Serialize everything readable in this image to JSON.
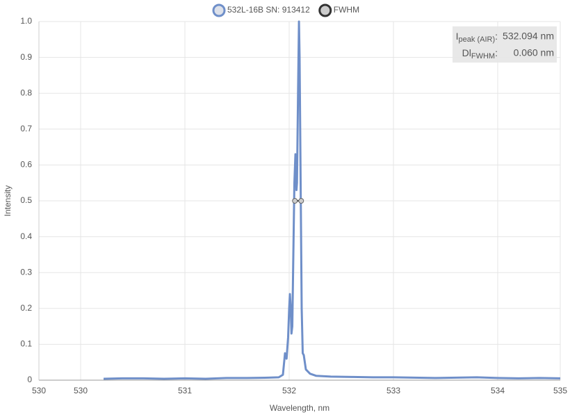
{
  "chart_data": {
    "type": "line",
    "xlabel": "Wavelength, nm",
    "ylabel": "Intensity",
    "xlim": [
      529.6,
      534.6
    ],
    "xticks": [
      {
        "value": 529.6,
        "label": "530"
      },
      530,
      531,
      532,
      533,
      534,
      {
        "value": 534.6,
        "label": "535"
      }
    ],
    "ylim": [
      0,
      1
    ],
    "yticks": [
      0,
      0.1,
      0.2,
      0.3,
      0.4,
      0.5,
      0.6,
      0.7,
      0.8,
      0.9,
      {
        "value": 1,
        "label": "1.0"
      }
    ],
    "grid": true,
    "series": [
      {
        "name": "532L-16B SN: 913412",
        "color": "#6f8fc9",
        "marker_fill": "#dde1ea",
        "x": [
          530.22,
          530.4,
          530.6,
          530.8,
          531.0,
          531.2,
          531.4,
          531.6,
          531.8,
          531.9,
          531.94,
          531.96,
          531.975,
          531.99,
          532.0,
          532.007,
          532.015,
          532.022,
          532.03,
          532.04,
          532.05,
          532.06,
          532.066,
          532.07,
          532.075,
          532.085,
          532.094,
          532.1,
          532.11,
          532.12,
          532.13,
          532.14,
          532.16,
          532.2,
          532.26,
          532.4,
          532.6,
          532.8,
          533.0,
          533.2,
          533.4,
          533.6,
          533.8,
          534.0,
          534.2,
          534.4,
          534.6
        ],
        "values": [
          0.004,
          0.005,
          0.005,
          0.004,
          0.005,
          0.004,
          0.006,
          0.006,
          0.007,
          0.008,
          0.015,
          0.075,
          0.06,
          0.12,
          0.2,
          0.24,
          0.2,
          0.13,
          0.15,
          0.35,
          0.55,
          0.63,
          0.6,
          0.53,
          0.55,
          0.8,
          1.0,
          0.9,
          0.55,
          0.2,
          0.075,
          0.07,
          0.03,
          0.018,
          0.012,
          0.01,
          0.009,
          0.008,
          0.008,
          0.007,
          0.006,
          0.007,
          0.008,
          0.006,
          0.005,
          0.006,
          0.005
        ]
      },
      {
        "name": "FWHM",
        "color": "#333333",
        "marker_fill": "#cccccc",
        "mode": "markers-line",
        "x": [
          532.055,
          532.115
        ],
        "values": [
          0.5,
          0.5
        ]
      }
    ],
    "info_box": [
      {
        "parts": [
          "I",
          "peak (AIR)",
          ":"
        ],
        "value": "532.094 nm"
      },
      {
        "parts": [
          "Dl",
          "FWHM",
          ":"
        ],
        "value": "0.060 nm"
      }
    ]
  }
}
